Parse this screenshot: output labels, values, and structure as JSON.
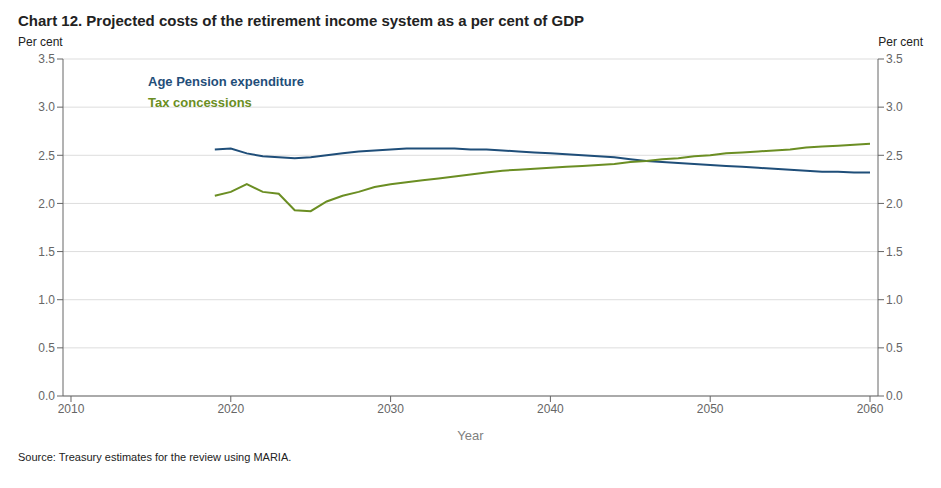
{
  "chart_data": {
    "type": "line",
    "title": "Chart 12. Projected costs of the retirement income system as a per cent of GDP",
    "xlabel": "Year",
    "ylabel": "Per cent",
    "y2label": "Per cent",
    "annotations": [
      "Source: Treasury estimates for the review using MARIA."
    ],
    "x": [
      2019,
      2020,
      2021,
      2022,
      2023,
      2024,
      2025,
      2026,
      2027,
      2028,
      2029,
      2030,
      2031,
      2032,
      2033,
      2034,
      2035,
      2036,
      2037,
      2038,
      2039,
      2040,
      2041,
      2042,
      2043,
      2044,
      2045,
      2046,
      2047,
      2048,
      2049,
      2050,
      2051,
      2052,
      2053,
      2054,
      2055,
      2056,
      2057,
      2058,
      2059,
      2060
    ],
    "series": [
      {
        "name": "Age Pension expenditure",
        "color": "#1F4E79",
        "values": [
          2.56,
          2.57,
          2.52,
          2.49,
          2.48,
          2.47,
          2.48,
          2.5,
          2.52,
          2.54,
          2.55,
          2.56,
          2.57,
          2.57,
          2.57,
          2.57,
          2.56,
          2.56,
          2.55,
          2.54,
          2.53,
          2.52,
          2.51,
          2.5,
          2.49,
          2.48,
          2.46,
          2.44,
          2.43,
          2.42,
          2.41,
          2.4,
          2.39,
          2.38,
          2.37,
          2.36,
          2.35,
          2.34,
          2.33,
          2.33,
          2.32,
          2.32
        ]
      },
      {
        "name": "Tax concessions",
        "color": "#6B8E23",
        "values": [
          2.08,
          2.12,
          2.2,
          2.12,
          2.1,
          1.93,
          1.92,
          2.02,
          2.08,
          2.12,
          2.17,
          2.2,
          2.22,
          2.24,
          2.26,
          2.28,
          2.3,
          2.32,
          2.34,
          2.35,
          2.36,
          2.37,
          2.38,
          2.39,
          2.4,
          2.41,
          2.43,
          2.44,
          2.46,
          2.47,
          2.49,
          2.5,
          2.52,
          2.53,
          2.54,
          2.55,
          2.56,
          2.58,
          2.59,
          2.6,
          2.61,
          2.62
        ]
      }
    ],
    "xlim": [
      2009.5,
      2060.5
    ],
    "xticks": [
      2010,
      2020,
      2030,
      2040,
      2050,
      2060
    ],
    "ylim": [
      0.0,
      3.5
    ],
    "yticks": [
      {
        "value": 0,
        "label": "0.0"
      },
      0.5,
      {
        "value": 1,
        "label": "1.0"
      },
      1.5,
      {
        "value": 2,
        "label": "2.0"
      },
      2.5,
      {
        "value": 3,
        "label": "3.0"
      },
      3.5
    ],
    "y2lim": [
      0.0,
      3.5
    ],
    "y2ticks": [
      {
        "value": 0,
        "label": "0.0"
      },
      0.5,
      {
        "value": 1,
        "label": "1.0"
      },
      1.5,
      {
        "value": 2,
        "label": "2.0"
      },
      2.5,
      {
        "value": 3,
        "label": "3.0"
      },
      3.5
    ],
    "grid": true,
    "legend": "upper left"
  }
}
